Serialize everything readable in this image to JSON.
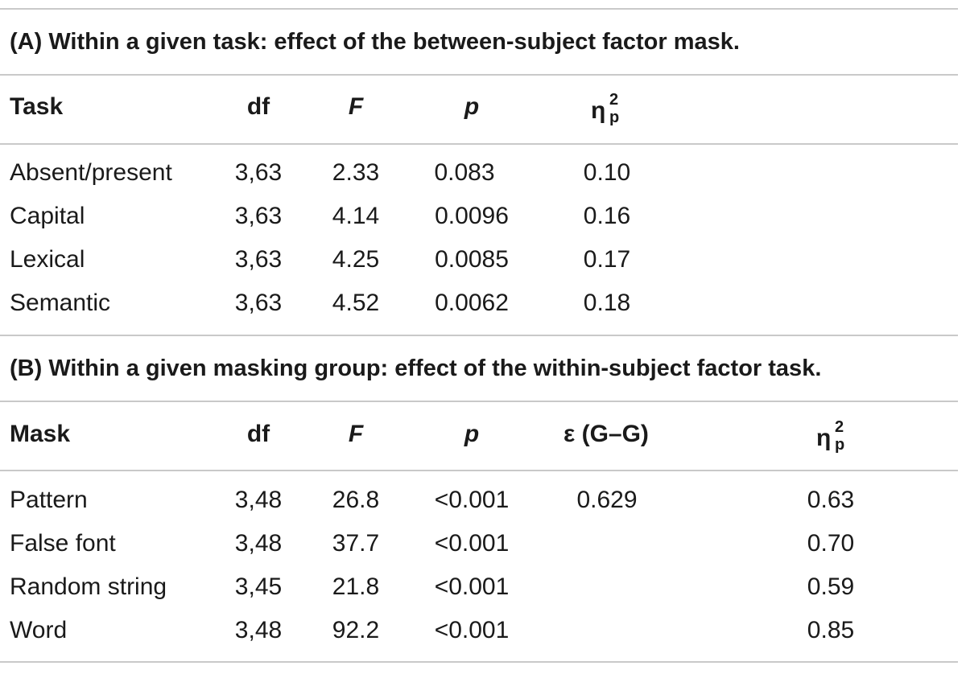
{
  "sectionA": {
    "title": "(A) Within a given task: effect of the between-subject factor mask.",
    "headers": {
      "col1": "Task",
      "df": "df",
      "F": "F",
      "p": "p",
      "eta": "η",
      "eta_sup": "2",
      "eta_sub": "p"
    },
    "rows": [
      {
        "label": "Absent/present",
        "df": "3,63",
        "F": "2.33",
        "p": "0.083",
        "eta": "0.10"
      },
      {
        "label": "Capital",
        "df": "3,63",
        "F": "4.14",
        "p": "0.0096",
        "eta": "0.16"
      },
      {
        "label": "Lexical",
        "df": "3,63",
        "F": "4.25",
        "p": "0.0085",
        "eta": "0.17"
      },
      {
        "label": "Semantic",
        "df": "3,63",
        "F": "4.52",
        "p": "0.0062",
        "eta": "0.18"
      }
    ]
  },
  "sectionB": {
    "title": "(B) Within a given masking group: effect of the within-subject factor task.",
    "headers": {
      "col1": "Mask",
      "df": "df",
      "F": "F",
      "p": "p",
      "eps": "ε (G–G)",
      "eta": "η",
      "eta_sup": "2",
      "eta_sub": "p"
    },
    "rows": [
      {
        "label": "Pattern",
        "df": "3,48",
        "F": "26.8",
        "p": "<0.001",
        "eps": "0.629",
        "eta": "0.63"
      },
      {
        "label": "False font",
        "df": "3,48",
        "F": "37.7",
        "p": "<0.001",
        "eps": "",
        "eta": "0.70"
      },
      {
        "label": "Random string",
        "df": "3,45",
        "F": "21.8",
        "p": "<0.001",
        "eps": "",
        "eta": "0.59"
      },
      {
        "label": "Word",
        "df": "3,48",
        "F": "92.2",
        "p": "<0.001",
        "eps": "",
        "eta": "0.85"
      }
    ]
  }
}
